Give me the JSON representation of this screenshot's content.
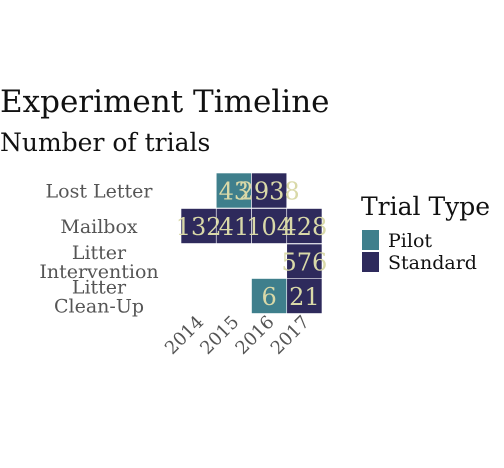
{
  "chart_data": {
    "type": "heatmap",
    "title": "Experiment Timeline",
    "subtitle": "Number of trials",
    "x_categories": [
      "2014",
      "2015",
      "2016",
      "2017"
    ],
    "y_categories": [
      "Lost Letter",
      "Mailbox",
      "Litter Intervention",
      "Litter Clean-Up"
    ],
    "y_tick_labels": [
      [
        "Lost Letter"
      ],
      [
        "Mailbox"
      ],
      [
        "Litter",
        "Intervention"
      ],
      [
        "Litter",
        "Clean-Up"
      ]
    ],
    "cells": [
      {
        "x": "2015",
        "y": "Lost Letter",
        "value": 43,
        "type": "Pilot"
      },
      {
        "x": "2016",
        "y": "Lost Letter",
        "value": 2938,
        "type": "Standard"
      },
      {
        "x": "2014",
        "y": "Mailbox",
        "value": 132,
        "type": "Standard"
      },
      {
        "x": "2015",
        "y": "Mailbox",
        "value": 41,
        "type": "Standard"
      },
      {
        "x": "2016",
        "y": "Mailbox",
        "value": 104,
        "type": "Standard"
      },
      {
        "x": "2017",
        "y": "Mailbox",
        "value": 428,
        "type": "Standard"
      },
      {
        "x": "2017",
        "y": "Litter Intervention",
        "value": 576,
        "type": "Standard"
      },
      {
        "x": "2016",
        "y": "Litter Clean-Up",
        "value": 6,
        "type": "Pilot"
      },
      {
        "x": "2017",
        "y": "Litter Clean-Up",
        "value": 21,
        "type": "Standard"
      }
    ],
    "legend": {
      "title": "Trial Type",
      "placement": "right",
      "entries": [
        {
          "name": "Pilot",
          "color": "#3f7f8c"
        },
        {
          "name": "Standard",
          "color": "#2e2a5c"
        }
      ]
    },
    "colors": {
      "Pilot": "#3f7f8c",
      "Standard": "#2e2a5c",
      "label": "#d9d9a8"
    },
    "grid": false
  }
}
